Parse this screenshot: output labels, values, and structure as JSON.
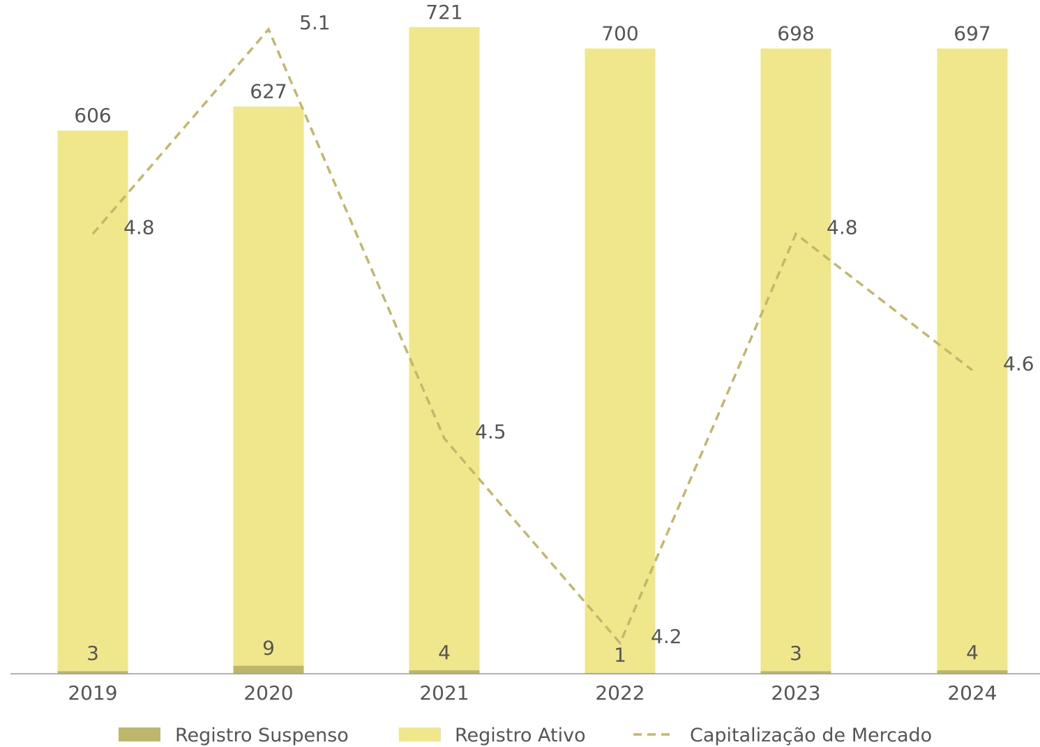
{
  "chart_data": {
    "type": "bar",
    "categories": [
      "2019",
      "2020",
      "2021",
      "2022",
      "2023",
      "2024"
    ],
    "series": [
      {
        "name": "Registro Suspenso",
        "kind": "bar",
        "color": "#bdb76b",
        "values": [
          3,
          9,
          4,
          1,
          3,
          4
        ],
        "labels": [
          "3",
          "9",
          "4",
          "1",
          "3",
          "4"
        ]
      },
      {
        "name": "Registro Ativo",
        "kind": "bar",
        "color": "#f0e68c",
        "values": [
          606,
          627,
          721,
          700,
          698,
          697
        ],
        "labels": [
          "606",
          "627",
          "721",
          "700",
          "698",
          "697"
        ]
      },
      {
        "name": "Capitalização de Mercado",
        "kind": "line",
        "style": "dashed",
        "color": "#c2b76c",
        "values": [
          4.8,
          5.1,
          4.5,
          4.2,
          4.8,
          4.6
        ],
        "labels": [
          "4.8",
          "5.1",
          "4.5",
          "4.2",
          "4.8",
          "4.6"
        ]
      }
    ],
    "stacked": true,
    "grid": false,
    "legend": "bottom"
  }
}
